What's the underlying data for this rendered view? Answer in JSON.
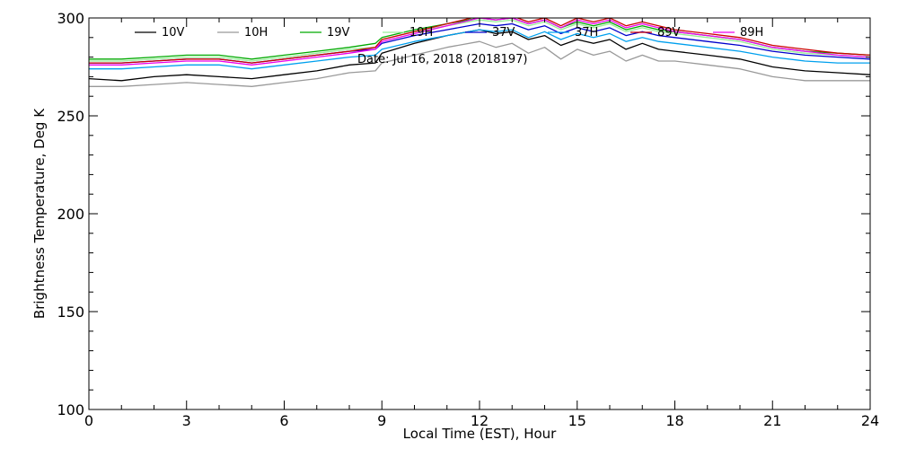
{
  "chart_data": {
    "type": "line",
    "title": "",
    "annotation": "Date: Jul 16, 2018 (2018197)",
    "xlabel": "Local Time (EST), Hour",
    "ylabel": "Brightness Temperature, Deg K",
    "xlim": [
      0,
      24
    ],
    "ylim": [
      100,
      300
    ],
    "xticks": [
      0,
      3,
      6,
      9,
      12,
      15,
      18,
      21,
      24
    ],
    "yticks": [
      100,
      150,
      200,
      250,
      300
    ],
    "x": [
      0,
      1,
      2,
      3,
      4,
      5,
      6,
      7,
      8,
      8.8,
      9,
      10,
      11,
      12,
      12.5,
      13,
      13.5,
      14,
      14.5,
      15,
      15.5,
      16,
      16.5,
      17,
      17.5,
      18,
      19,
      20,
      21,
      22,
      23,
      24
    ],
    "grid": false,
    "legend_position": "top",
    "series": [
      {
        "name": "10V",
        "color": "#000000",
        "values": [
          269,
          268,
          270,
          271,
          270,
          269,
          271,
          273,
          276,
          277,
          282,
          287,
          291,
          294,
          292,
          293,
          289,
          291,
          286,
          289,
          287,
          289,
          284,
          287,
          284,
          283,
          281,
          279,
          275,
          273,
          272,
          271
        ]
      },
      {
        "name": "10H",
        "color": "#999999",
        "values": [
          265,
          265,
          266,
          267,
          266,
          265,
          267,
          269,
          272,
          273,
          277,
          281,
          285,
          288,
          285,
          287,
          282,
          285,
          279,
          284,
          281,
          283,
          278,
          281,
          278,
          278,
          276,
          274,
          270,
          268,
          268,
          268
        ]
      },
      {
        "name": "19V",
        "color": "#00aa00",
        "values": [
          279,
          279,
          280,
          281,
          281,
          279,
          281,
          283,
          285,
          287,
          290,
          294,
          297,
          300,
          299,
          300,
          297,
          299,
          295,
          298,
          296,
          298,
          294,
          296,
          294,
          293,
          291,
          289,
          285,
          283,
          282,
          281
        ]
      },
      {
        "name": "19H",
        "color": "#99ee99",
        "values": [
          278,
          278,
          279,
          280,
          280,
          278,
          280,
          282,
          284,
          285,
          289,
          293,
          296,
          299,
          298,
          299,
          296,
          298,
          294,
          297,
          295,
          297,
          293,
          295,
          293,
          292,
          290,
          288,
          284,
          282,
          281,
          280
        ]
      },
      {
        "name": "37V",
        "color": "#0000cc",
        "values": [
          277,
          277,
          278,
          279,
          279,
          277,
          279,
          281,
          283,
          284,
          287,
          291,
          294,
          297,
          296,
          297,
          294,
          296,
          292,
          295,
          293,
          295,
          291,
          293,
          291,
          290,
          288,
          286,
          283,
          281,
          280,
          279
        ]
      },
      {
        "name": "37H",
        "color": "#00a0ee",
        "values": [
          274,
          274,
          275,
          276,
          276,
          274,
          276,
          278,
          280,
          281,
          284,
          288,
          291,
          294,
          293,
          294,
          290,
          293,
          289,
          292,
          290,
          292,
          288,
          290,
          288,
          287,
          285,
          283,
          280,
          278,
          277,
          277
        ]
      },
      {
        "name": "89V",
        "color": "#cc0000",
        "values": [
          277,
          277,
          278,
          279,
          279,
          277,
          279,
          281,
          283,
          285,
          289,
          293,
          297,
          301,
          300,
          301,
          298,
          300,
          296,
          300,
          298,
          300,
          296,
          298,
          296,
          294,
          292,
          290,
          286,
          284,
          282,
          281
        ]
      },
      {
        "name": "89H",
        "color": "#ee00ee",
        "values": [
          276,
          276,
          277,
          278,
          278,
          276,
          278,
          280,
          282,
          284,
          288,
          292,
          296,
          300,
          299,
          300,
          297,
          299,
          295,
          299,
          297,
          299,
          295,
          297,
          295,
          293,
          291,
          289,
          285,
          283,
          281,
          280
        ]
      }
    ]
  }
}
